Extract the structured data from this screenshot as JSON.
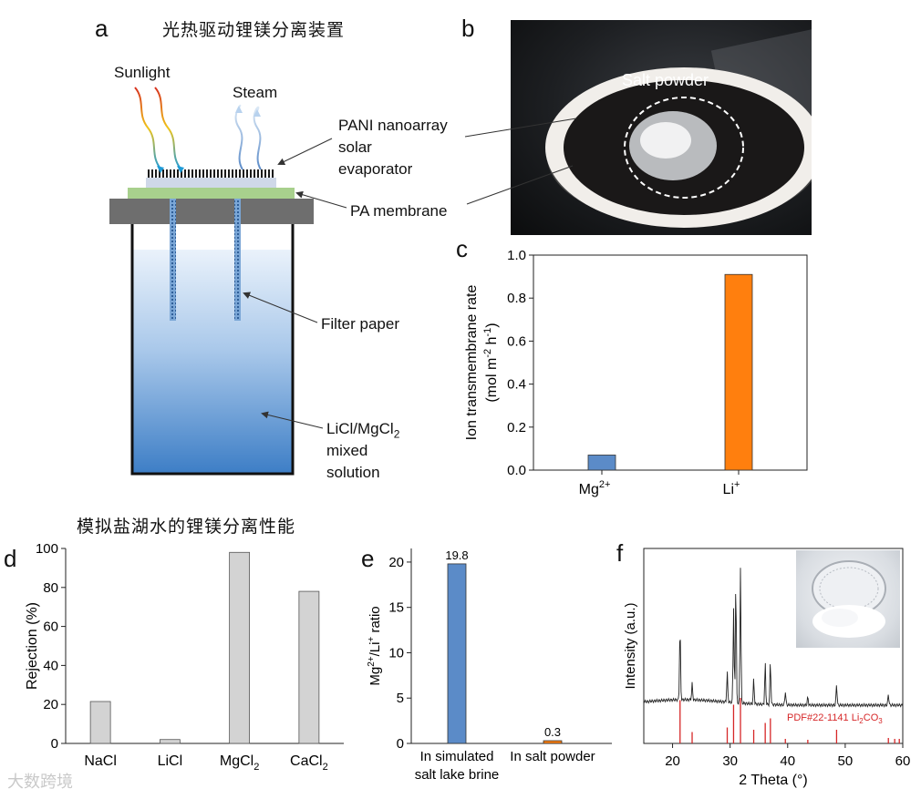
{
  "panels": {
    "a": {
      "letter": "a",
      "title": "光热驱动锂镁分离装置",
      "sunlight": "Sunlight",
      "steam": "Steam",
      "evaporator_label": [
        "PANI nanoarray",
        "solar",
        "evaporator"
      ],
      "membrane_label": "PA membrane",
      "filter_label": "Filter paper",
      "solution_label_1": "LiCl/MgCl",
      "solution_label_1_sub": "2",
      "solution_label_2": "mixed",
      "solution_label_3": "solution"
    },
    "b": {
      "letter": "b",
      "label": "Salt powder"
    },
    "c": {
      "letter": "c"
    },
    "d": {
      "letter": "d",
      "title": "模拟盐湖水的锂镁分离性能"
    },
    "e": {
      "letter": "e"
    },
    "f": {
      "letter": "f",
      "pdf_label": "PDF#22-1141 Li",
      "pdf_sub": "2",
      "pdf_tail": "CO",
      "pdf_sub2": "3"
    }
  },
  "watermark": "大数跨境",
  "colors": {
    "blue": "#5b8bc8",
    "orange": "#ff7f0e",
    "gray": "#d3d3d3",
    "red": "#d62728"
  },
  "chart_data": [
    {
      "id": "c",
      "type": "bar",
      "categories": [
        "Mg",
        "Li"
      ],
      "category_sup": [
        "2+",
        "+"
      ],
      "values": [
        0.07,
        0.91
      ],
      "colors": [
        "#5b8bc8",
        "#ff7f0e"
      ],
      "ylabel_1": "Ion transmembrane rate",
      "ylabel_2": "(mol m",
      "ylim": [
        0,
        1.0
      ],
      "yticks": [
        "0.0",
        "0.2",
        "0.4",
        "0.6",
        "0.8",
        "1.0"
      ],
      "ytick_values": [
        0,
        0.2,
        0.4,
        0.6,
        0.8,
        1.0
      ]
    },
    {
      "id": "d",
      "type": "bar",
      "categories": [
        "NaCl",
        "LiCl",
        "MgCl",
        "CaCl"
      ],
      "category_sub": [
        "",
        "",
        "2",
        "2"
      ],
      "values": [
        21.5,
        2,
        98,
        78
      ],
      "ylabel": "Rejection (%)",
      "ylim": [
        0,
        100
      ],
      "yticks": [
        "0",
        "20",
        "40",
        "60",
        "80",
        "100"
      ],
      "ytick_values": [
        0,
        20,
        40,
        60,
        80,
        100
      ]
    },
    {
      "id": "e",
      "type": "bar",
      "categories": [
        "In simulated salt lake brine",
        "In salt powder"
      ],
      "category_lines": [
        [
          "In simulated",
          "salt lake brine"
        ],
        [
          "In salt powder"
        ]
      ],
      "values": [
        19.8,
        0.3
      ],
      "value_labels": [
        "19.8",
        "0.3"
      ],
      "colors": [
        "#5b8bc8",
        "#ff7f0e"
      ],
      "ylabel": "Mg2+/Li+ ratio",
      "ylim": [
        0,
        21.5
      ],
      "yticks": [
        "0",
        "5",
        "10",
        "15",
        "20"
      ],
      "ytick_values": [
        0,
        5,
        10,
        15,
        20
      ]
    },
    {
      "id": "f",
      "type": "line",
      "xlabel": "2 Theta (°)",
      "ylabel": "Intensity (a.u.)",
      "xlim": [
        15,
        60
      ],
      "xticks": [
        "20",
        "30",
        "40",
        "50",
        "60"
      ],
      "xtick_values": [
        20,
        30,
        40,
        50,
        60
      ],
      "peaks": [
        [
          21.3,
          0.55
        ],
        [
          23.4,
          0.12
        ],
        [
          29.5,
          0.22
        ],
        [
          30.6,
          0.7
        ],
        [
          31.0,
          0.9
        ],
        [
          31.8,
          1.0
        ],
        [
          34.1,
          0.18
        ],
        [
          36.1,
          0.3
        ],
        [
          37.0,
          0.32
        ],
        [
          39.6,
          0.1
        ],
        [
          43.5,
          0.06
        ],
        [
          48.5,
          0.15
        ],
        [
          57.5,
          0.08
        ]
      ],
      "reference_peaks": [
        [
          21.3,
          0.95
        ],
        [
          23.4,
          0.25
        ],
        [
          29.5,
          0.35
        ],
        [
          30.6,
          0.85
        ],
        [
          31.8,
          1.0
        ],
        [
          34.1,
          0.3
        ],
        [
          36.1,
          0.45
        ],
        [
          37.0,
          0.55
        ],
        [
          39.6,
          0.1
        ],
        [
          43.5,
          0.08
        ],
        [
          48.5,
          0.3
        ],
        [
          57.5,
          0.12
        ],
        [
          58.6,
          0.1
        ],
        [
          59.4,
          0.1
        ]
      ]
    }
  ]
}
